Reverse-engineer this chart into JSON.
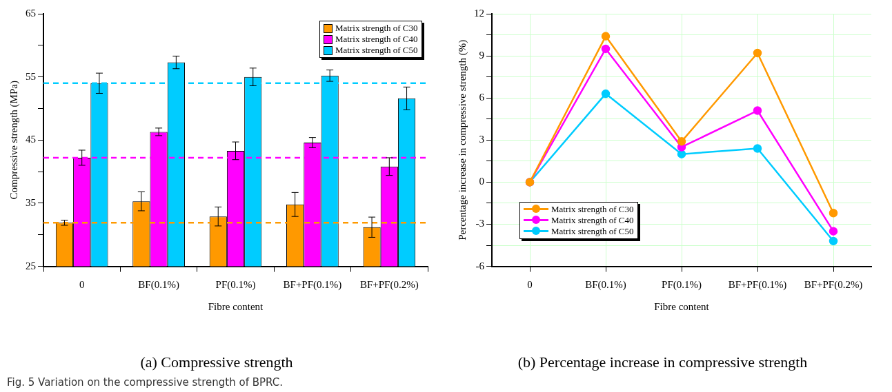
{
  "chart_data": [
    {
      "type": "bar",
      "title": "(a) Compressive strength",
      "xlabel": "Fibre content",
      "ylabel": "Compressive strength (MPa)",
      "categories": [
        "0",
        "BF(0.1%)",
        "PF(0.1%)",
        "BF+PF(0.1%)",
        "BF+PF(0.2%)"
      ],
      "series": [
        {
          "name": "Matrix strength of C30",
          "color": "#ff9900",
          "values": [
            31.9,
            35.3,
            32.9,
            34.8,
            31.2
          ],
          "errors": [
            0.4,
            1.5,
            1.5,
            1.9,
            1.6
          ]
        },
        {
          "name": "Matrix strength of C40",
          "color": "#ff00ff",
          "values": [
            42.2,
            46.3,
            43.3,
            44.6,
            40.8
          ],
          "errors": [
            1.2,
            0.6,
            1.4,
            0.8,
            1.4
          ]
        },
        {
          "name": "Matrix strength of C50",
          "color": "#00ccff",
          "values": [
            54.0,
            57.3,
            55.0,
            55.2,
            51.6
          ],
          "errors": [
            1.6,
            1.0,
            1.4,
            0.9,
            1.8
          ]
        }
      ],
      "ylim": [
        25,
        65
      ],
      "yticks": [
        25,
        {
          "value": 30,
          "label": null
        },
        35,
        {
          "value": 40,
          "label": null
        },
        45,
        {
          "value": 50,
          "label": null
        },
        55,
        {
          "value": 60,
          "label": null
        },
        65
      ],
      "ref_lines": [
        {
          "axis": "y",
          "value": 31.9,
          "color": "#ff9900",
          "line_style": "dashed"
        },
        {
          "axis": "y",
          "value": 42.2,
          "color": "#ff00ff",
          "line_style": "dashed"
        },
        {
          "axis": "y",
          "value": 54.0,
          "color": "#00ccff",
          "line_style": "dashed"
        }
      ],
      "grid": false,
      "legend": "top right",
      "annotations": [
        "Fig. 5 Variation on the compressive strength of BPRC."
      ]
    },
    {
      "type": "line",
      "title": "(b) Percentage increase in compressive strength",
      "xlabel": "Fibre content",
      "ylabel": "Percentage increase in compressive strength (%)",
      "categories": [
        "0",
        "BF(0.1%)",
        "PF(0.1%)",
        "BF+PF(0.1%)",
        "BF+PF(0.2%)"
      ],
      "series": [
        {
          "name": "Matrix strength of C30",
          "color": "#ff9900",
          "values": [
            0,
            10.4,
            2.9,
            9.2,
            -2.2
          ]
        },
        {
          "name": "Matrix strength of C40",
          "color": "#ff00ff",
          "values": [
            0,
            9.5,
            2.5,
            5.1,
            -3.5
          ]
        },
        {
          "name": "Matrix strength of C50",
          "color": "#00ccff",
          "values": [
            0,
            6.3,
            2.0,
            2.4,
            -4.2
          ]
        }
      ],
      "ylim": [
        -6,
        12
      ],
      "yticks": [
        -6,
        {
          "value": -4.5,
          "label": null
        },
        -3,
        {
          "value": -1.5,
          "label": null
        },
        0,
        {
          "value": 1.5,
          "label": null
        },
        3,
        {
          "value": 4.5,
          "label": null
        },
        6,
        {
          "value": 7.5,
          "label": null
        },
        9,
        {
          "value": 10.5,
          "label": null
        },
        12
      ],
      "grid": true,
      "legend": "bottom left",
      "marker": "circle",
      "line_style": "solid"
    }
  ]
}
